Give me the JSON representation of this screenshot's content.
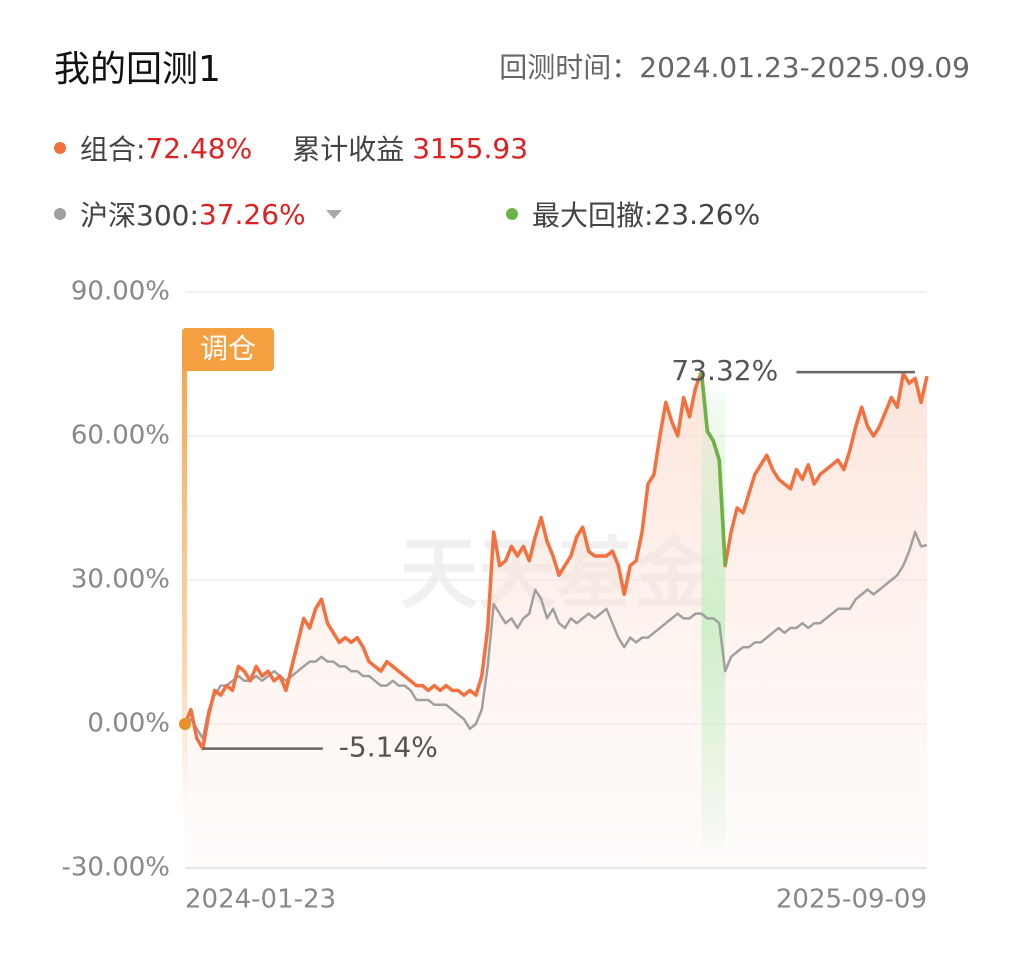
{
  "header": {
    "title": "我的回测1",
    "period_label": "回测时间：",
    "period": "2024.01.23-2025.09.09"
  },
  "summary": {
    "cumulative_label": "累计收益",
    "cumulative": "3155.93",
    "max_drawdown_label": "最大回撤:",
    "max_drawdown": "23.26%"
  },
  "chart_data": {
    "type": "line",
    "categories": [
      "2024-01-23",
      null,
      null,
      null,
      null,
      null,
      null,
      null,
      null,
      null,
      null,
      null,
      null,
      null,
      null,
      null,
      null,
      null,
      null,
      null,
      null,
      null,
      null,
      null,
      null,
      null,
      null,
      null,
      null,
      null,
      null,
      null,
      null,
      null,
      null,
      null,
      null,
      null,
      null,
      null,
      null,
      null,
      null,
      null,
      null,
      null,
      null,
      null,
      null,
      null,
      null,
      null,
      null,
      null,
      null,
      null,
      null,
      null,
      null,
      null,
      null,
      null,
      null,
      null,
      null,
      null,
      null,
      null,
      null,
      null,
      null,
      null,
      null,
      null,
      null,
      null,
      null,
      null,
      null,
      null,
      null,
      null,
      null,
      null,
      null,
      null,
      null,
      null,
      null,
      null,
      null,
      null,
      null,
      null,
      null,
      null,
      null,
      null,
      null,
      null,
      null,
      null,
      null,
      null,
      null,
      null,
      null,
      null,
      null,
      null,
      null,
      null,
      null,
      null,
      null,
      null,
      null,
      null,
      null,
      null,
      null,
      null,
      null,
      null,
      null,
      "2025-09-09"
    ],
    "series": [
      {
        "name": "组合",
        "return": "72.48%",
        "color": "#f4703f",
        "values": [
          0,
          3,
          -3,
          -5.14,
          2,
          7,
          6,
          8,
          7,
          12,
          11,
          9,
          12,
          10,
          11,
          9,
          10,
          7,
          12,
          17,
          22,
          20,
          24,
          26,
          21,
          19,
          17,
          18,
          17,
          18,
          16,
          13,
          12,
          11,
          13,
          12,
          11,
          10,
          9,
          8,
          8,
          7,
          8,
          7,
          8,
          7,
          7,
          6,
          7,
          6,
          10,
          20,
          40,
          33,
          34,
          37,
          35,
          37,
          34,
          39,
          43,
          38,
          35,
          31,
          33,
          35,
          39,
          41,
          36,
          35,
          35,
          35,
          36,
          33,
          27,
          33,
          34,
          40,
          50,
          52,
          60,
          67,
          63,
          60,
          68,
          64,
          70,
          73.32,
          61,
          59,
          55,
          33,
          40,
          45,
          44,
          48,
          52,
          54,
          56,
          53,
          51,
          50,
          49,
          53,
          51,
          54,
          50,
          52,
          53,
          54,
          55,
          53,
          57,
          62,
          66,
          62,
          60,
          62,
          65,
          68,
          66,
          73,
          71,
          72,
          67,
          72.48
        ]
      },
      {
        "name": "沪深300",
        "return": "37.26%",
        "color": "#a0a0a0",
        "values": [
          0,
          1,
          -1,
          -3,
          3,
          6,
          8,
          8,
          9,
          10,
          9,
          9,
          10,
          9,
          10,
          11,
          10,
          9,
          10,
          11,
          12,
          13,
          13,
          14,
          13,
          13,
          12,
          12,
          11,
          11,
          10,
          10,
          9,
          8,
          8,
          9,
          8,
          8,
          7,
          5,
          5,
          5,
          4,
          4,
          4,
          3,
          2,
          1,
          -1,
          0,
          3,
          12,
          25,
          23,
          21,
          22,
          20,
          22,
          23,
          28,
          26,
          22,
          24,
          21,
          20,
          22,
          21,
          22,
          23,
          22,
          23,
          24,
          21,
          18,
          16,
          18,
          17,
          18,
          18,
          19,
          20,
          21,
          22,
          23,
          22,
          22,
          23,
          23,
          22,
          22,
          21,
          11,
          14,
          15,
          16,
          16,
          17,
          17,
          18,
          19,
          20,
          19,
          20,
          20,
          21,
          20,
          21,
          21,
          22,
          23,
          24,
          24,
          24,
          26,
          27,
          28,
          27,
          28,
          29,
          30,
          31,
          33,
          36,
          40,
          37,
          37.26
        ]
      }
    ],
    "ylim": [
      -30,
      90
    ],
    "yticks": [
      {
        "value": -30,
        "label": "-30.00%"
      },
      {
        "value": 0,
        "label": "0.00%"
      },
      {
        "value": 30,
        "label": "30.00%"
      },
      {
        "value": 60,
        "label": "60.00%"
      },
      {
        "value": 90,
        "label": "90.00%"
      }
    ],
    "grid": true,
    "drawdown_color": "#6ab344",
    "annotations": [
      {
        "value": 73.32,
        "label": "73.32%"
      },
      {
        "value": -5.14,
        "label": "-5.14%"
      }
    ],
    "marker_label": "调仓",
    "watermark": "天天基金"
  }
}
